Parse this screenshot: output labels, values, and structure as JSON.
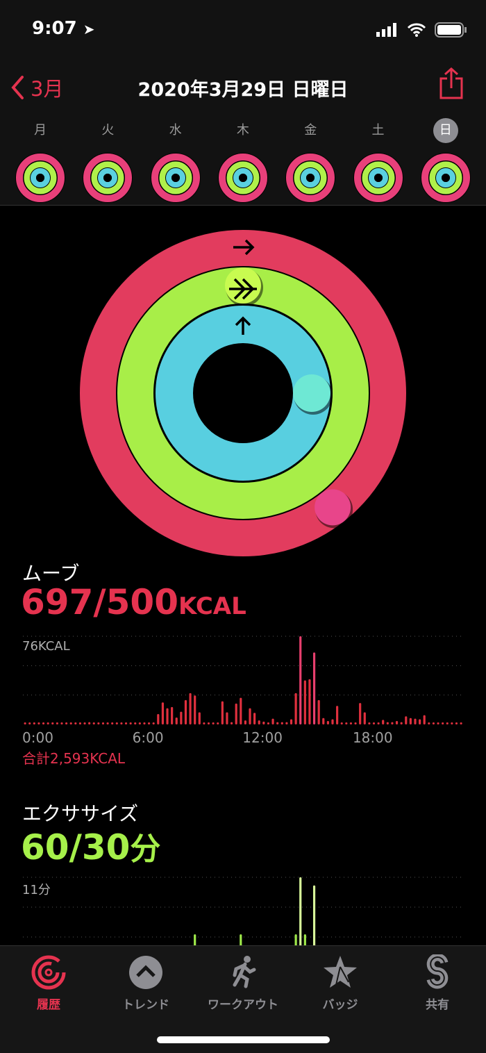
{
  "status": {
    "time": "9:07"
  },
  "nav": {
    "back_label": "3月",
    "title": "2020年3月29日 日曜日"
  },
  "week": {
    "days": [
      "月",
      "火",
      "水",
      "木",
      "金",
      "土",
      "日"
    ],
    "selected_index": 6
  },
  "rings": {
    "move_progress": 1.394,
    "exercise_progress": 2.0,
    "stand_progress": 1.25,
    "colors": {
      "move": "#e5334f",
      "exercise": "#a6f04a",
      "stand": "#52d4e0"
    }
  },
  "move": {
    "label": "ムーブ",
    "value": "697/500",
    "unit": "KCAL",
    "total": "合計2,593KCAL",
    "color": "#e5334f"
  },
  "exercise": {
    "label": "エクササイズ",
    "value": "60/30",
    "unit": "分",
    "color": "#a6f04a"
  },
  "chart_data": [
    {
      "type": "bar",
      "ymax_label": "76KCAL",
      "ylim": [
        0,
        76
      ],
      "x_ticks": [
        "0:00",
        "6:00",
        "12:00",
        "18:00"
      ],
      "interval_minutes": 15,
      "values": [
        1,
        1,
        1,
        1,
        1,
        1,
        1,
        1,
        1,
        1,
        1,
        1,
        1,
        1,
        2,
        1,
        1,
        1,
        1,
        1,
        1,
        1,
        1,
        1,
        1,
        1,
        1,
        1,
        1,
        9,
        19,
        14,
        15,
        6,
        11,
        21,
        27,
        25,
        10.5,
        1,
        1,
        1,
        1,
        20,
        10.5,
        2,
        18,
        23,
        3.5,
        14,
        10,
        3.5,
        2.5,
        1.5,
        5,
        2,
        2,
        2,
        4.5,
        27,
        76,
        38,
        39,
        62,
        21,
        5.5,
        3,
        4.5,
        16,
        1.5,
        1.5,
        1.5,
        1.5,
        18.5,
        10.5,
        1.5,
        1.5,
        1.5,
        4,
        2,
        2,
        3,
        2,
        7,
        5.5,
        5,
        4.5,
        8,
        1.5,
        1.5,
        1.5,
        1.5,
        1.5,
        1.5,
        1.5,
        1.5
      ]
    },
    {
      "type": "bar",
      "ymax_label": "11分",
      "ylim": [
        0,
        11
      ],
      "bars": [
        {
          "index": 37,
          "value": 4
        },
        {
          "index": 47,
          "value": 4
        },
        {
          "index": 59,
          "value": 4
        },
        {
          "index": 60,
          "value": 11
        },
        {
          "index": 61,
          "value": 4
        },
        {
          "index": 62,
          "value": 1
        },
        {
          "index": 63,
          "value": 10
        },
        {
          "index": 74,
          "value": 1
        }
      ]
    }
  ],
  "tabs": [
    {
      "label": "履歴",
      "icon": "history-rings-icon",
      "active": true
    },
    {
      "label": "トレンド",
      "icon": "trend-chevron-icon"
    },
    {
      "label": "ワークアウト",
      "icon": "runner-icon"
    },
    {
      "label": "バッジ",
      "icon": "star-badge-icon"
    },
    {
      "label": "共有",
      "icon": "sharing-icon"
    }
  ]
}
